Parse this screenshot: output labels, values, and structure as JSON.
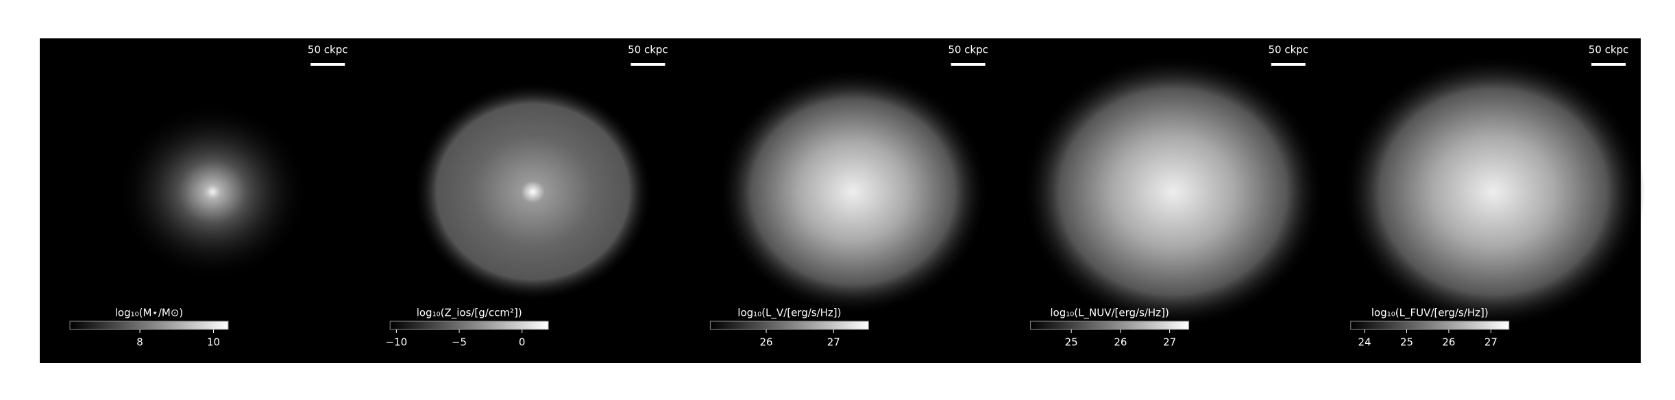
{
  "chart_data": [
    {
      "type": "image",
      "scale_bar": "50 ckpc",
      "cmap": "gray",
      "colorbar": {
        "label": "log₁₀(M⋆/M⊙)",
        "lim": [
          6.1,
          10.4
        ],
        "ticks": [
          8,
          10
        ]
      }
    },
    {
      "type": "image",
      "scale_bar": "50 ckpc",
      "cmap": "gray",
      "colorbar": {
        "label": "log₁₀(Z_ios/[g/ccm²])",
        "lim": [
          -10.5,
          2.1
        ],
        "ticks": [
          {
            "value": -10,
            "label": "−10"
          },
          {
            "value": -5,
            "label": "−5"
          },
          0
        ]
      }
    },
    {
      "type": "image",
      "scale_bar": "50 ckpc",
      "cmap": "gray",
      "colorbar": {
        "label": "log₁₀(L_V/[erg/s/Hz])",
        "lim": [
          25.17,
          27.52
        ],
        "ticks": [
          26,
          27
        ]
      }
    },
    {
      "type": "image",
      "scale_bar": "50 ckpc",
      "cmap": "gray",
      "colorbar": {
        "label": "log₁₀(L_NUV/[erg/s/Hz])",
        "lim": [
          24.17,
          27.39
        ],
        "ticks": [
          25,
          26,
          27
        ]
      }
    },
    {
      "type": "image",
      "scale_bar": "50 ckpc",
      "cmap": "gray",
      "colorbar": {
        "label": "log₁₀(L_FUV/[erg/s/Hz])",
        "lim": [
          23.67,
          27.43
        ],
        "ticks": [
          24,
          25,
          26,
          27
        ]
      }
    }
  ]
}
